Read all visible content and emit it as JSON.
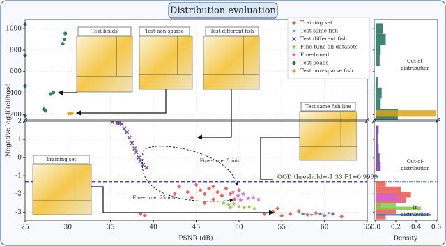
{
  "chart_data": [
    {
      "type": "scatter",
      "title": "Distribution evaluation",
      "xlabel": "PSNR (dB)",
      "ylabel": "Negative log-likelihood",
      "xlim": [
        25,
        65
      ],
      "xticks": [
        25,
        30,
        35,
        40,
        45,
        50,
        55,
        60,
        65
      ],
      "ylim": [
        -3.45,
        2.0
      ],
      "yticks": [
        -3,
        -2,
        -1,
        0,
        1,
        2
      ],
      "y_upper_lim": [
        150,
        1085
      ],
      "y_upper_ticks": [
        200,
        400,
        600,
        800,
        1000
      ],
      "grid": true,
      "threshold": -1.33,
      "annotations": [
        "OOD threshold=-1.33 F1=0.9969",
        "Fine-tune: 5 min",
        "Fine-tune: 25 min"
      ],
      "insets": [
        "Test beads",
        "Test non-sparse",
        "Test different fish",
        "Test same fish line",
        "Training set"
      ],
      "series": [
        {
          "name": "Training set",
          "color": "#e8574f",
          "marker": "diamond",
          "x": [
            43,
            44,
            44.5,
            45,
            45.5,
            46,
            46.5,
            47,
            47,
            47.5,
            48,
            48.5,
            49,
            49.5,
            46,
            42.5,
            50,
            53,
            54,
            55,
            56,
            57,
            58,
            59,
            60,
            61,
            62,
            38.5,
            39,
            54.5
          ],
          "values": [
            -1.6,
            -1.9,
            -2.2,
            -1.5,
            -1.8,
            -2.0,
            -1.7,
            -2.3,
            -1.6,
            -1.9,
            -2.1,
            -1.7,
            -2.0,
            -2.3,
            -2.5,
            -2.0,
            -1.8,
            -3.1,
            -3.0,
            -3.2,
            -3.1,
            -2.95,
            -3.15,
            -3.05,
            -3.2,
            -3.1,
            -3.25,
            -3.1,
            -3.2,
            -2.8
          ]
        },
        {
          "name": "Test same fish",
          "color": "#2f7fc1",
          "marker": "thin_diamond",
          "x": [
            57.5,
            58.5,
            59.5,
            60.5,
            61
          ],
          "values": [
            -3.1,
            -3.15,
            -3.1,
            -3.05,
            -3.1
          ]
        },
        {
          "name": "Test different fish",
          "color": "#6a3d9a",
          "marker": "x",
          "x": [
            35.2,
            35.8,
            36,
            36.3,
            36.6,
            36.9,
            37.2,
            37.5,
            37.8,
            38,
            38.3,
            38.5,
            38.8,
            39.2
          ],
          "values": [
            1.95,
            1.9,
            1.9,
            1.85,
            1.6,
            1.4,
            1.1,
            0.8,
            0.5,
            0.3,
            0.0,
            -0.2,
            -0.4,
            -0.55
          ]
        },
        {
          "name": "Fine-tune all datasets",
          "color": "#8bc34a",
          "marker": "star",
          "x": [
            48.2,
            48.8,
            49.4,
            50,
            50.6,
            51.2,
            51.8,
            49
          ],
          "values": [
            -2.5,
            -2.6,
            -2.55,
            -2.7,
            -2.75,
            -2.7,
            -2.8,
            -2.75
          ]
        },
        {
          "name": "Fine-tuned",
          "color": "#d65fd6",
          "marker": "star",
          "x": [
            49.3,
            49.9,
            50.5,
            51.1,
            51.7,
            52.3,
            50.2
          ],
          "values": [
            -1.9,
            -2.1,
            -2.0,
            -2.25,
            -2.2,
            -2.3,
            -2.35
          ]
        },
        {
          "name": "Test beads",
          "color": "#1f6f5c",
          "marker": "circle",
          "x": [
            25,
            25,
            25,
            25,
            27.2,
            27.4,
            28,
            28.3,
            29.4,
            29.6,
            29.7
          ],
          "values": [
            1040,
            750,
            465,
            190,
            250,
            235,
            390,
            405,
            860,
            900,
            955
          ]
        },
        {
          "name": "Test non-sparse fish",
          "color": "#d9a21b",
          "marker": "diamond",
          "x": [
            30.1,
            30.3,
            30.5
          ],
          "values": [
            210,
            210,
            212
          ]
        }
      ]
    },
    {
      "type": "hist",
      "xlabel": "Density",
      "xlim": [
        0,
        0.6
      ],
      "xticks": [
        {
          "value": 0,
          "label": "0.0"
        },
        0.2,
        0.4,
        0.6
      ],
      "annotations": [
        [
          "Out-of-",
          "distribution"
        ],
        [
          "Out-of-",
          "distribution"
        ],
        [
          "In",
          "distribution"
        ]
      ],
      "series": [
        {
          "color": "#1f6f5c",
          "bins": [
            150,
            250,
            350,
            450,
            550,
            650,
            750,
            850,
            950,
            1050
          ],
          "values": [
            0.22,
            0.05,
            0.06,
            0.02,
            0,
            0.04,
            0.05,
            0.1,
            0.07
          ]
        },
        {
          "color": "#d9a21b",
          "bins": [
            180,
            240
          ],
          "values": [
            0.6
          ]
        },
        {
          "color": "#6a3d9a",
          "bins": [
            -0.75,
            -0.25,
            0.25,
            0.75,
            1.25,
            1.75
          ],
          "values": [
            0.05,
            0.04,
            0.03,
            0.02,
            0.03
          ]
        },
        {
          "color": "#e8574f",
          "bins": [
            -3.4,
            -3.1,
            -2.8,
            -2.5,
            -2.2,
            -1.9,
            -1.6,
            -1.3
          ],
          "values": [
            0.1,
            0.2,
            0.05,
            0.3,
            0.35,
            0.25,
            0.1
          ]
        },
        {
          "color": "#8bc34a",
          "bins": [
            -2.9,
            -2.7,
            -2.5
          ],
          "values": [
            0.45,
            0.2
          ]
        },
        {
          "color": "#d65fd6",
          "bins": [
            -2.4,
            -2.2,
            -2.0
          ],
          "values": [
            0.25,
            0.2
          ]
        },
        {
          "color": "#2f7fc1",
          "bins": [
            -3.2,
            -3.1
          ],
          "values": [
            0.55
          ]
        }
      ]
    }
  ]
}
